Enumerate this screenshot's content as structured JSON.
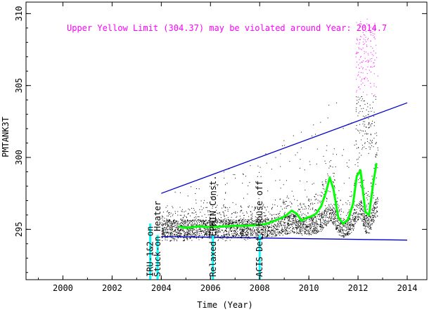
{
  "chart_data": {
    "type": "scatter",
    "title": "",
    "xlabel": "Time (Year)",
    "ylabel": "PMTANK3T",
    "xlim": [
      1998.5,
      2014.8
    ],
    "ylim": [
      291.5,
      310.8
    ],
    "x_ticks": [
      2000,
      2002,
      2004,
      2006,
      2008,
      2010,
      2012,
      2014
    ],
    "y_ticks": [
      295,
      300,
      305,
      310
    ],
    "grid": false,
    "annotation": {
      "text": "Upper Yellow  Limit (304.37) may be violated around Year: 2014.7",
      "color": "#ff00ff"
    },
    "colors": {
      "data": "#000000",
      "violations": "#ff00ff",
      "trend": "#0000cc",
      "moving_average": "#00ff00",
      "events": "#00ffff"
    },
    "events": [
      {
        "year": 2003.55,
        "label": "IRU-1&2 on"
      },
      {
        "year": 2003.85,
        "label": "Stuck-on Heater"
      },
      {
        "year": 2006.1,
        "label": "Relaxed EPHIN Const."
      },
      {
        "year": 2008.0,
        "label": "ACIS Det. House off"
      }
    ],
    "series": [
      {
        "name": "",
        "kind": "upper-envelope",
        "x": [
          2004.0,
          2014.0
        ],
        "y": [
          297.5,
          303.8
        ]
      },
      {
        "name": "",
        "kind": "lower-envelope",
        "x": [
          2004.0,
          2014.0
        ],
        "y": [
          294.5,
          294.25
        ]
      },
      {
        "name": "",
        "kind": "moving-average",
        "x": [
          2004.7,
          2005.0,
          2005.5,
          2006.0,
          2006.5,
          2007.0,
          2007.5,
          2008.0,
          2008.3,
          2008.6,
          2008.9,
          2009.1,
          2009.3,
          2009.5,
          2009.7,
          2009.9,
          2010.1,
          2010.3,
          2010.5,
          2010.7,
          2010.85,
          2011.0,
          2011.2,
          2011.4,
          2011.6,
          2011.8,
          2011.95,
          2012.1,
          2012.3,
          2012.45,
          2012.6,
          2012.75
        ],
        "y": [
          295.2,
          295.1,
          295.2,
          295.15,
          295.2,
          295.25,
          295.25,
          295.3,
          295.4,
          295.6,
          295.8,
          296.0,
          296.3,
          296.1,
          295.6,
          295.8,
          295.9,
          296.1,
          296.6,
          297.6,
          298.6,
          297.8,
          295.8,
          295.4,
          295.7,
          296.8,
          298.7,
          299.1,
          296.2,
          296.0,
          298.0,
          299.6
        ]
      }
    ],
    "scatter_model": {
      "density_per_year": 420,
      "x_start": 2004.0,
      "x_end": 2012.8,
      "band_low": 294.4,
      "band_high": 295.7,
      "violation_threshold": 304.37
    }
  }
}
